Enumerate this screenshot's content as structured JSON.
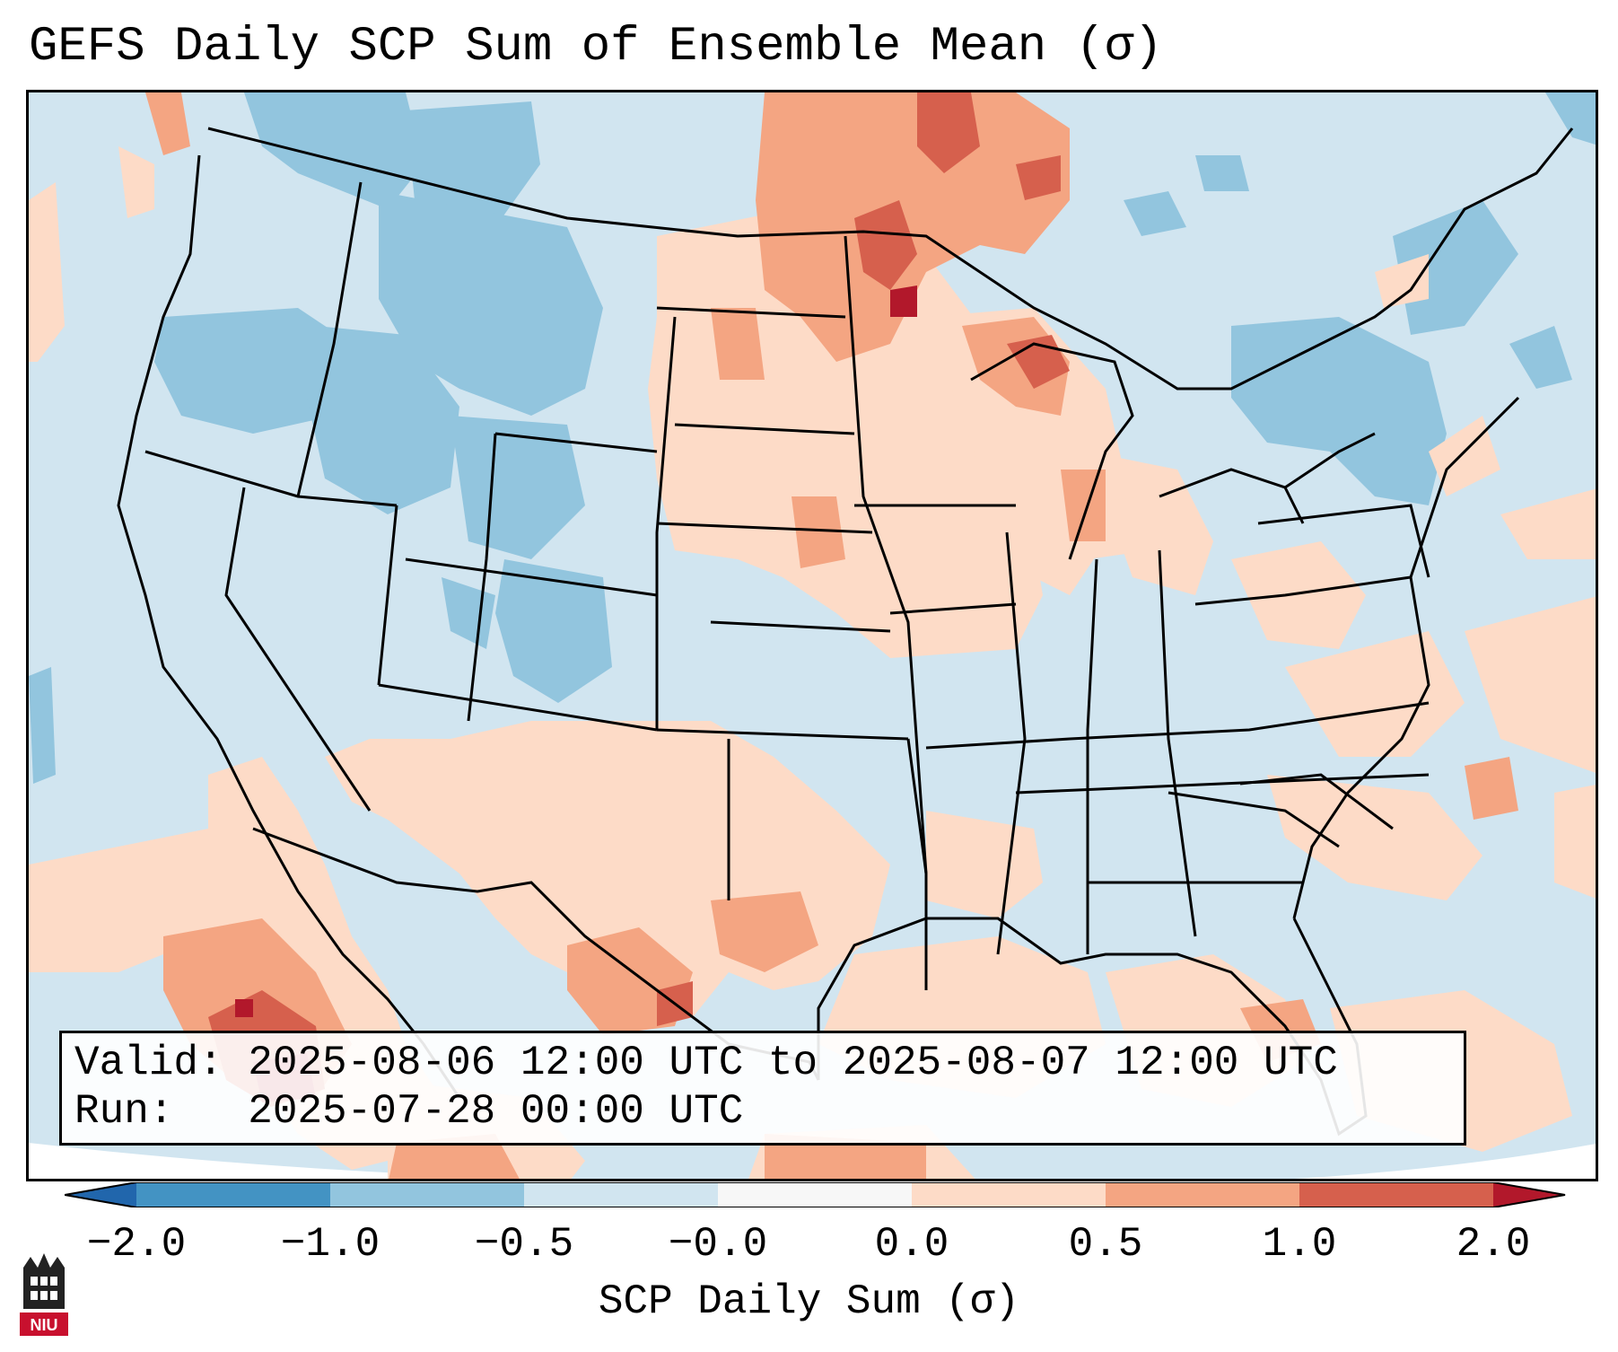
{
  "title": "GEFS Daily SCP Sum of Ensemble Mean (σ)",
  "info": {
    "valid_line": "Valid: 2025-08-06 12:00 UTC to 2025-08-07 12:00 UTC",
    "run_line": "Run:   2025-07-28 00:00 UTC"
  },
  "colorbar": {
    "label": "SCP Daily Sum (σ)",
    "tick_labels": [
      "−2.0",
      "−1.0",
      "−0.5",
      "−0.0",
      "0.0",
      "0.5",
      "1.0",
      "2.0"
    ],
    "bin_colors": [
      "#4393c3",
      "#92c5de",
      "#d1e5f0",
      "#f7f7f7",
      "#fddbc7",
      "#f4a582",
      "#d6604d"
    ],
    "under_color": "#2166ac",
    "over_color": "#b2182b"
  },
  "logo": {
    "text": "NIU",
    "color": "#c8102e"
  }
}
